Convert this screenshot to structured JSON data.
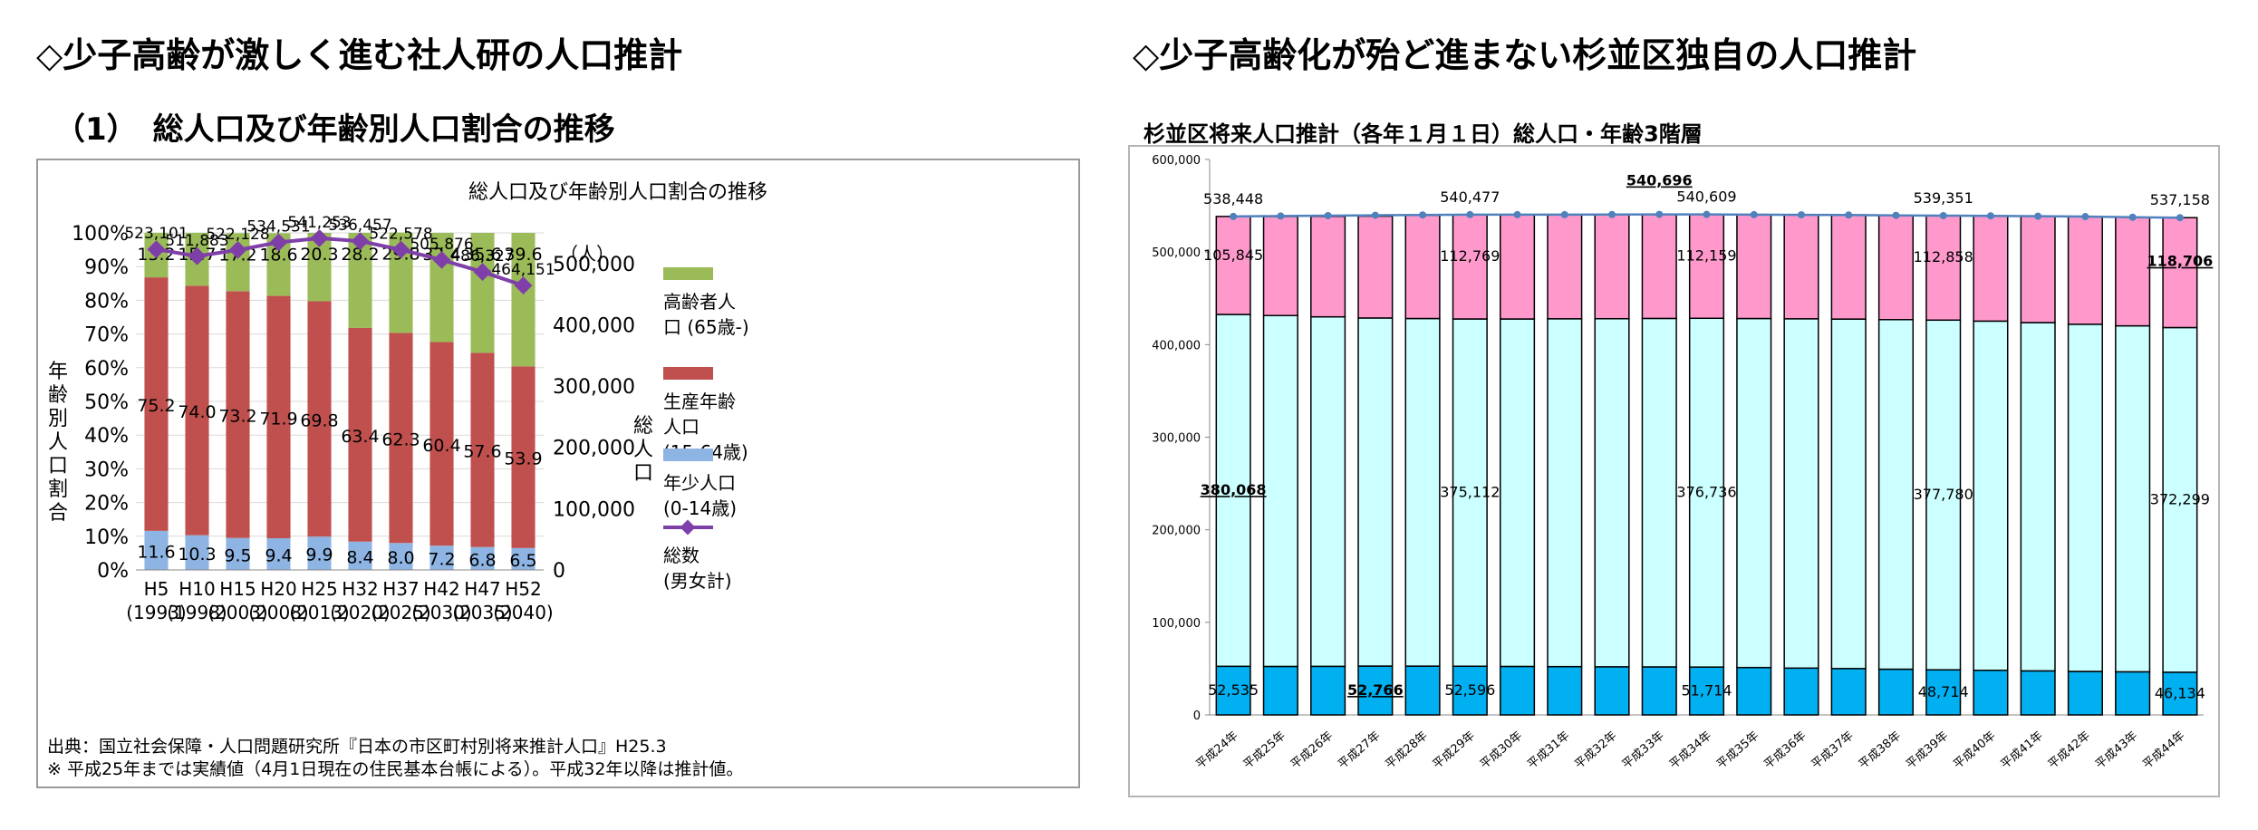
{
  "left_heading": "◇少子高齢が激しく進む社人研の人口推計",
  "left_subheading": "（1）　総人口及び年齢別人口割合の推移",
  "right_heading": "◇少子高齢化が殆ど進まない杉並区独自の人口推計",
  "right_chart_title": "杉並区将来人口推計（各年１月１日）総人口・年齢3階層",
  "left_notes": [
    "出典：国立社会保障・人口問題研究所『日本の市区町村別将来推計人口』H25.3",
    "※ 平成25年までは実績値（4月1日現在の住民基本台帳による）。平成32年以降は推計値。"
  ],
  "chart_data": [
    {
      "type": "bar",
      "stacked": true,
      "title": "総人口及び年齢別人口割合の推移",
      "ylabel": "年齢別人口割合",
      "y2label": "総人口",
      "y2unit": "（人）",
      "ylim": [
        0,
        100
      ],
      "y2lim": [
        0,
        550000
      ],
      "y_ticks": [
        "0%",
        "10%",
        "20%",
        "30%",
        "40%",
        "50%",
        "60%",
        "70%",
        "80%",
        "90%",
        "100%"
      ],
      "y2_ticks": [
        "0",
        "100,000",
        "200,000",
        "300,000",
        "400,000",
        "500,000"
      ],
      "categories": [
        "H5",
        "H10",
        "H15",
        "H20",
        "H25",
        "H32",
        "H37",
        "H42",
        "H47",
        "H52"
      ],
      "categories_sub": [
        "(1993)",
        "(1998)",
        "(2003)",
        "(2008)",
        "(2013)",
        "(2020)",
        "(2025)",
        "(2030)",
        "(2035)",
        "(2040)"
      ],
      "series": [
        {
          "name": "年少人口 (0-14歳)",
          "color": "#8eb4e3",
          "values": [
            11.6,
            10.3,
            9.5,
            9.4,
            9.9,
            8.4,
            8.0,
            7.2,
            6.8,
            6.5
          ],
          "labels": [
            "11.6",
            "10.3",
            "9.5",
            "9.4",
            "9.9",
            "8.4",
            "8.0",
            "7.2",
            "6.8",
            "6.5"
          ]
        },
        {
          "name": "生産年齢人口 (15-64歳)",
          "color": "#c0504d",
          "values": [
            75.2,
            74.0,
            73.2,
            71.9,
            69.8,
            63.4,
            62.3,
            60.4,
            57.6,
            53.9
          ],
          "labels": [
            "75.2",
            "74.0",
            "73.2",
            "71.9",
            "69.8",
            "63.4",
            "62.3",
            "60.4",
            "57.6",
            "53.9"
          ]
        },
        {
          "name": "高齢者人口 (65歳-)",
          "color": "#9bbb59",
          "values": [
            13.2,
            15.7,
            17.2,
            18.6,
            20.3,
            28.2,
            29.8,
            32.4,
            35.6,
            39.6
          ],
          "labels": [
            "13.2",
            "15.7",
            "17.2",
            "18.6",
            "20.3",
            "28.2",
            "29.8",
            "32.4",
            "35.6",
            "39.6"
          ]
        }
      ],
      "line": {
        "name": "総数 (男女計)",
        "color": "#7f3fa8",
        "values": [
          523101,
          511883,
          522128,
          534531,
          541253,
          536457,
          522578,
          505876,
          486327,
          464151
        ],
        "labels": [
          "523,101",
          "511,883",
          "522,128",
          "534,531",
          "541,253",
          "536,457",
          "522,578",
          "505,876",
          "486,327",
          "464,151"
        ]
      },
      "legend": {
        "placement": "right",
        "entries": [
          {
            "lines": [
              "高齢者人",
              "口 (65歳-)"
            ],
            "color": "#9bbb59",
            "kind": "box"
          },
          {
            "lines": [
              "生産年齢",
              "人口",
              "(15-64歳)"
            ],
            "color": "#c0504d",
            "kind": "box"
          },
          {
            "lines": [
              "年少人口",
              "(0-14歳)"
            ],
            "color": "#8eb4e3",
            "kind": "box"
          },
          {
            "lines": [
              "総数",
              "(男女計)"
            ],
            "color": "#7f3fa8",
            "kind": "line"
          }
        ]
      }
    },
    {
      "type": "bar",
      "stacked": true,
      "ylim": [
        0,
        600000
      ],
      "y_ticks": [
        "0",
        "100,000",
        "200,000",
        "300,000",
        "400,000",
        "500,000",
        "600,000"
      ],
      "categories": [
        "平成24年",
        "平成25年",
        "平成26年",
        "平成27年",
        "平成28年",
        "平成29年",
        "平成30年",
        "平成31年",
        "平成32年",
        "平成33年",
        "平成34年",
        "平成35年",
        "平成36年",
        "平成37年",
        "平成38年",
        "平成39年",
        "平成40年",
        "平成41年",
        "平成42年",
        "平成43年",
        "平成44年"
      ],
      "series": [
        {
          "name": "年少人口",
          "color": "#00b0f0",
          "values": [
            52535,
            52400,
            52500,
            52766,
            52700,
            52596,
            52400,
            52200,
            52000,
            51900,
            51714,
            51200,
            50600,
            50100,
            49400,
            48714,
            48200,
            47600,
            47000,
            46600,
            46134
          ]
        },
        {
          "name": "生産年齢人口",
          "color": "#ccffff",
          "values": [
            380068,
            379000,
            377500,
            376000,
            375500,
            375112,
            375300,
            375700,
            376000,
            376400,
            376736,
            377000,
            377300,
            377500,
            377600,
            377780,
            377200,
            376200,
            375000,
            373700,
            372299
          ]
        },
        {
          "name": "高齢者人口",
          "color": "#ff99cc",
          "values": [
            105845,
            107000,
            108500,
            110000,
            111500,
            112769,
            112600,
            112400,
            112300,
            112200,
            112159,
            112200,
            112300,
            112400,
            112600,
            112858,
            113700,
            114900,
            116300,
            117300,
            118706
          ]
        }
      ],
      "line": {
        "name": "総人口",
        "color": "#4f81bd",
        "values": [
          538448,
          538900,
          539300,
          539700,
          540100,
          540477,
          540400,
          540400,
          540500,
          540696,
          540609,
          540400,
          540200,
          540000,
          539600,
          539351,
          539100,
          538700,
          538300,
          537600,
          537158
        ]
      },
      "annotations": [
        {
          "index": 0,
          "series": 0,
          "text": "52,535",
          "bold": false
        },
        {
          "index": 3,
          "series": 0,
          "text": "52,766",
          "bold": true
        },
        {
          "index": 5,
          "series": 0,
          "text": "52,596",
          "bold": false
        },
        {
          "index": 10,
          "series": 0,
          "text": "51,714",
          "bold": false
        },
        {
          "index": 15,
          "series": 0,
          "text": "48,714",
          "bold": false
        },
        {
          "index": 20,
          "series": 0,
          "text": "46,134",
          "bold": false
        },
        {
          "index": 0,
          "series": 1,
          "text": "380,068",
          "bold": true
        },
        {
          "index": 5,
          "series": 1,
          "text": "375,112",
          "bold": false
        },
        {
          "index": 10,
          "series": 1,
          "text": "376,736",
          "bold": false
        },
        {
          "index": 15,
          "series": 1,
          "text": "377,780",
          "bold": false
        },
        {
          "index": 20,
          "series": 1,
          "text": "372,299",
          "bold": false
        },
        {
          "index": 0,
          "series": 2,
          "text": "105,845",
          "bold": false
        },
        {
          "index": 5,
          "series": 2,
          "text": "112,769",
          "bold": false
        },
        {
          "index": 10,
          "series": 2,
          "text": "112,159",
          "bold": false
        },
        {
          "index": 15,
          "series": 2,
          "text": "112,858",
          "bold": false
        },
        {
          "index": 20,
          "series": 2,
          "text": "118,706",
          "bold": true
        },
        {
          "index": 0,
          "series": 3,
          "text": "538,448",
          "bold": false
        },
        {
          "index": 5,
          "series": 3,
          "text": "540,477",
          "bold": false
        },
        {
          "index": 9,
          "series": 3,
          "text": "540,696",
          "bold": true
        },
        {
          "index": 10,
          "series": 3,
          "text": "540,609",
          "bold": false
        },
        {
          "index": 15,
          "series": 3,
          "text": "539,351",
          "bold": false
        },
        {
          "index": 20,
          "series": 3,
          "text": "537,158",
          "bold": false
        }
      ]
    }
  ]
}
